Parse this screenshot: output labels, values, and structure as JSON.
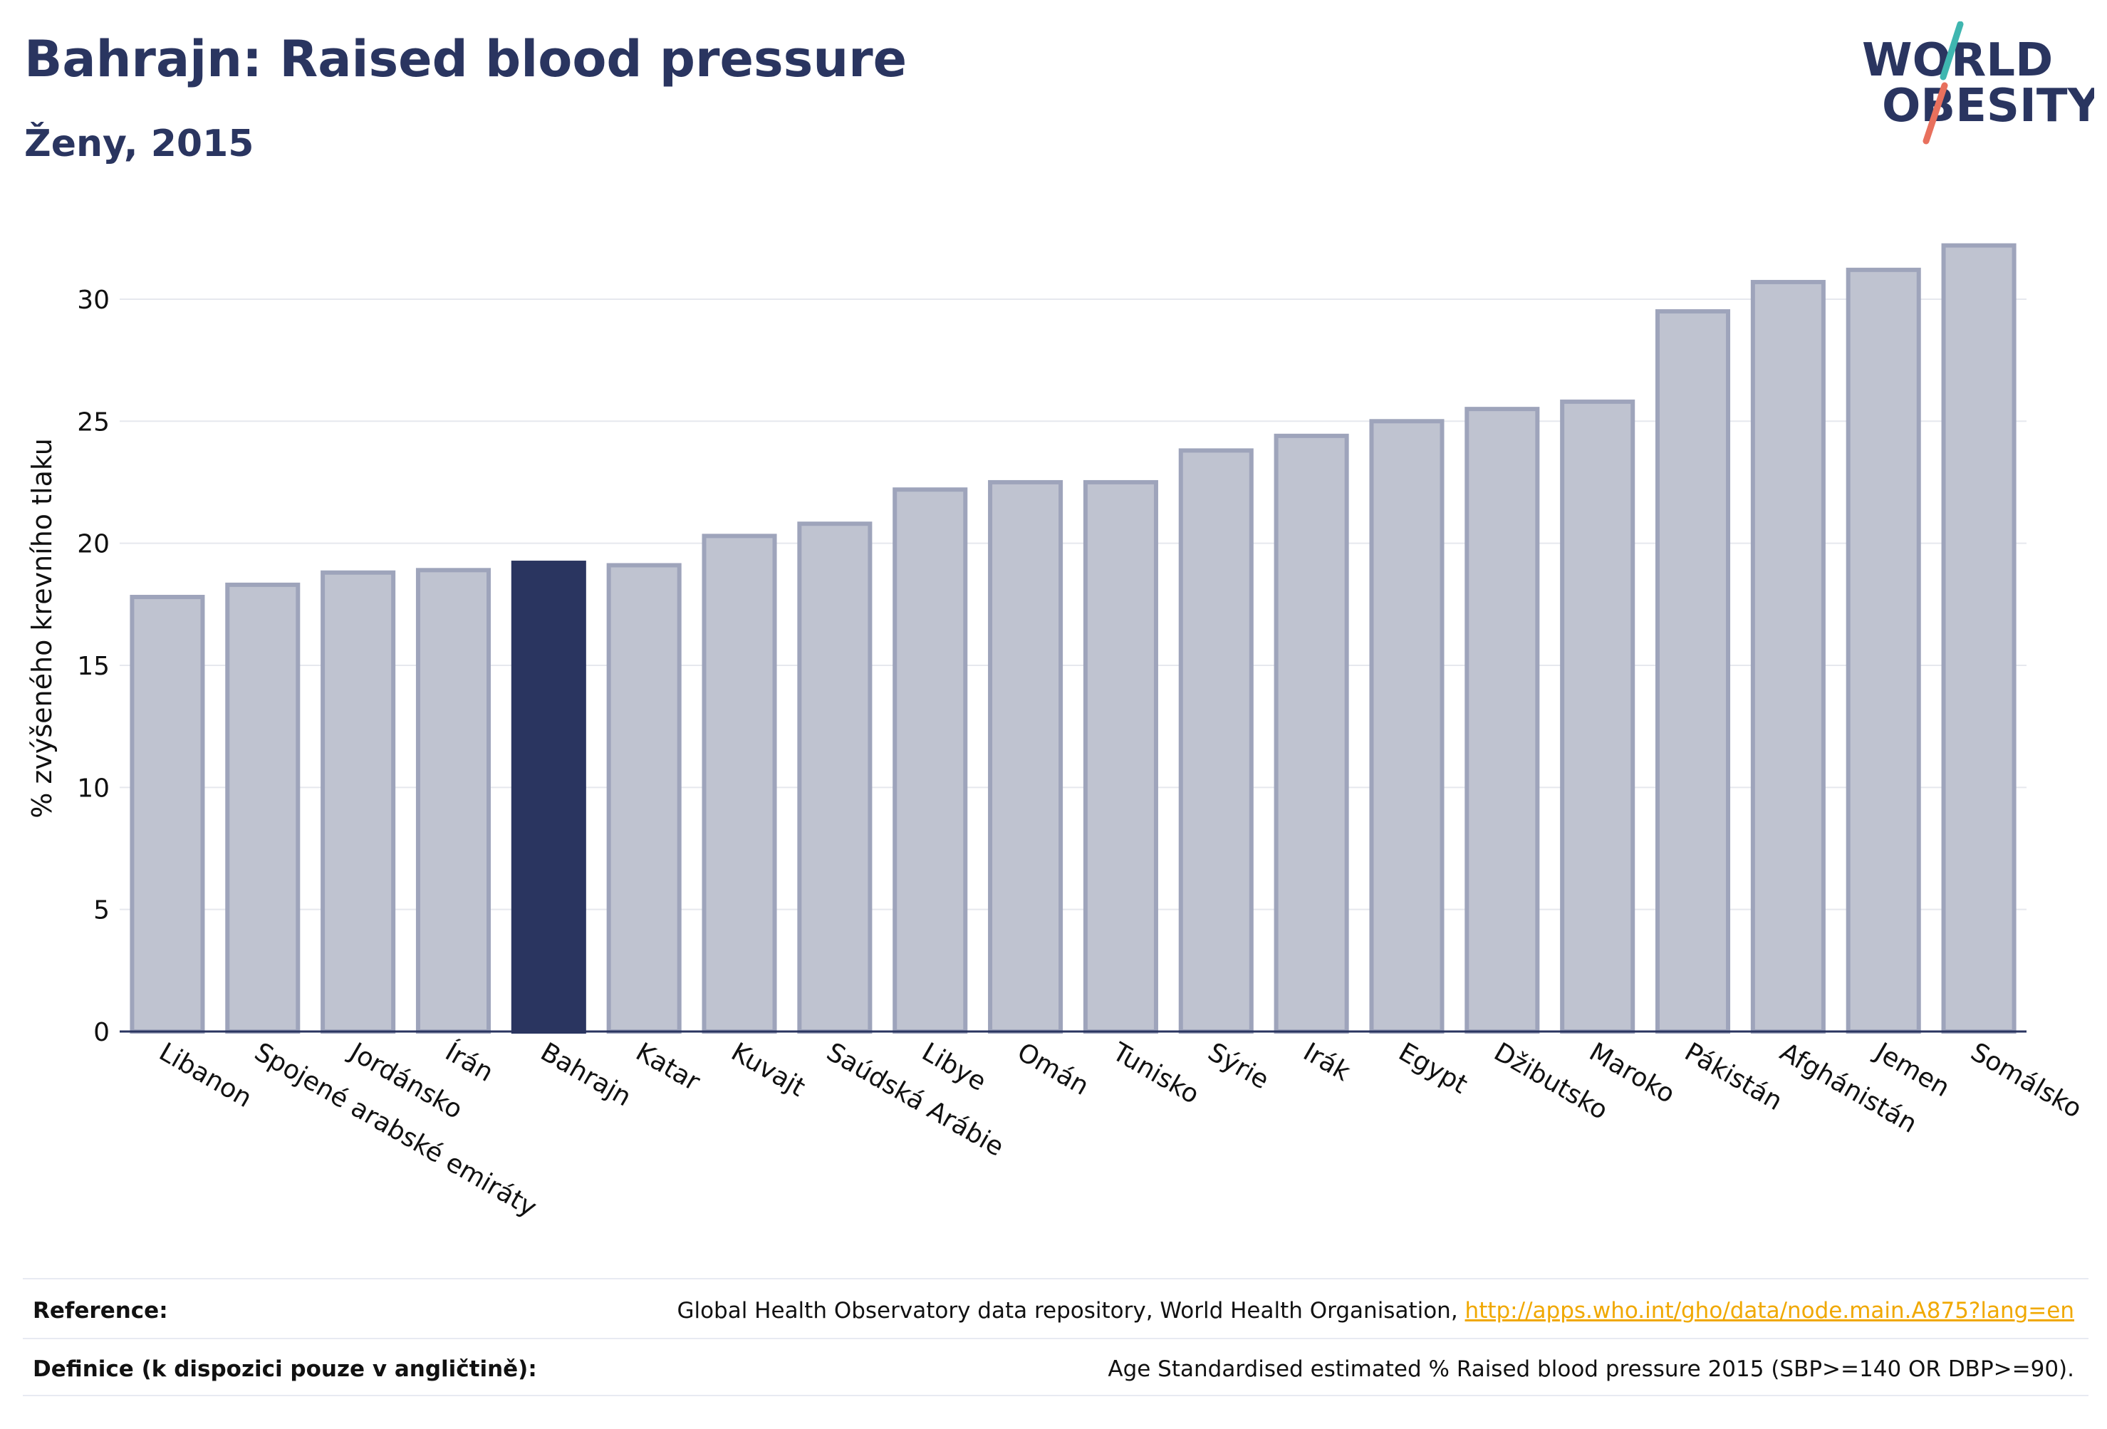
{
  "header": {
    "title": "Bahrajn: Raised blood pressure",
    "subtitle": "Ženy, 2015",
    "logo_line1": "WORLD",
    "logo_line2": "OBESITY"
  },
  "chart_data": {
    "type": "bar",
    "categories": [
      "Libanon",
      "Spojené arabské emiráty",
      "Jordánsko",
      "Írán",
      "Bahrajn",
      "Katar",
      "Kuvajt",
      "Saúdská Arábie",
      "Libye",
      "Omán",
      "Tunisko",
      "Sýrie",
      "Irák",
      "Egypt",
      "Džibutsko",
      "Maroko",
      "Pákistán",
      "Afghánistán",
      "Jemen",
      "Somálsko"
    ],
    "values": [
      17.8,
      18.3,
      18.8,
      18.9,
      19.2,
      19.1,
      20.3,
      20.8,
      22.2,
      22.5,
      22.5,
      23.8,
      24.4,
      25.0,
      25.5,
      25.8,
      29.5,
      30.7,
      31.2,
      32.2
    ],
    "highlight": "Bahrajn",
    "ylabel": "% zvýšeného krevního tlaku",
    "ylim": [
      0,
      33.5
    ],
    "yticks": [
      0,
      5,
      10,
      15,
      20,
      25,
      30
    ],
    "grid": true,
    "colors": {
      "bar": "#bfc3d0",
      "bar_border": "#9ea4bb",
      "highlight": "#2a3560",
      "grid": "#e6e8ee",
      "axis": "#2a3560"
    }
  },
  "footer": {
    "reference_label": "Reference:",
    "reference_text": "Global Health Observatory data repository, World Health Organisation, ",
    "reference_link": "http://apps.who.int/gho/data/node.main.A875?lang=en",
    "definition_label": "Definice (k dispozici pouze v angličtině):",
    "definition_text": "Age Standardised estimated % Raised blood pressure 2015 (SBP>=140 OR DBP>=90)."
  }
}
